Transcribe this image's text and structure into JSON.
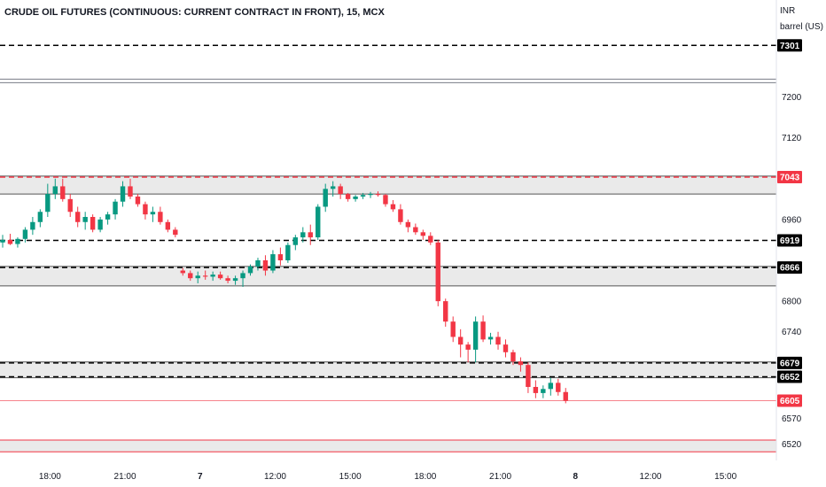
{
  "chart_data": {
    "type": "candlestick",
    "title": "CRUDE OIL FUTURES (CONTINUOUS: CURRENT CONTRACT IN FRONT), 15, MCX",
    "currency": "INR",
    "unit": "barrel (US)",
    "ylim": [
      6488,
      7390
    ],
    "y_ticks": [
      7200,
      7120,
      6960,
      6800,
      6740,
      6570,
      6520
    ],
    "x_ticks": [
      {
        "index": 6.3,
        "label": "18:00",
        "bold": false
      },
      {
        "index": 16.3,
        "label": "21:00",
        "bold": false
      },
      {
        "index": 26.3,
        "label": "7",
        "bold": true
      },
      {
        "index": 36.3,
        "label": "12:00",
        "bold": false
      },
      {
        "index": 46.3,
        "label": "15:00",
        "bold": false
      },
      {
        "index": 56.3,
        "label": "18:00",
        "bold": false
      },
      {
        "index": 66.3,
        "label": "21:00",
        "bold": false
      },
      {
        "index": 76.3,
        "label": "8",
        "bold": true
      },
      {
        "index": 86.3,
        "label": "12:00",
        "bold": false
      },
      {
        "index": 96.3,
        "label": "15:00",
        "bold": false
      }
    ],
    "levels": [
      {
        "value": 7301,
        "label": "7301",
        "style": "dashed",
        "color": "#000000"
      },
      {
        "value": 7043,
        "label": "7043",
        "style": "dashed",
        "color": "#f23645"
      },
      {
        "value": 6919,
        "label": "6919",
        "style": "dashed",
        "color": "#000000"
      },
      {
        "value": 6866,
        "label": "6866",
        "style": "dashed",
        "color": "#000000"
      },
      {
        "value": 6679,
        "label": "6679",
        "style": "dashed",
        "color": "#000000"
      },
      {
        "value": 6652,
        "label": "6652",
        "style": "dashed",
        "color": "#000000"
      }
    ],
    "last_price": {
      "value": 6605,
      "label": "6605",
      "color": "#f23645"
    },
    "zones": [
      {
        "from": 7010,
        "to": 7045,
        "fill": "#e3e3e3",
        "border": "#555555"
      },
      {
        "from": 6830,
        "to": 6868,
        "fill": "#e3e3e3",
        "border": "#555555"
      },
      {
        "from": 6650,
        "to": 6681,
        "fill": "#e3e3e3",
        "border": "#555555"
      },
      {
        "from": 6505,
        "to": 6528,
        "fill": "#e3e3e3",
        "border": "#f23645"
      }
    ],
    "double_line": [
      7235,
      7228
    ],
    "colors": {
      "up": "#089981",
      "down": "#f23645",
      "text": "#131722"
    },
    "candles": [
      [
        6915,
        6930,
        6905,
        6920
      ],
      [
        6920,
        6932,
        6910,
        6912
      ],
      [
        6912,
        6925,
        6905,
        6922
      ],
      [
        6922,
        6945,
        6915,
        6940
      ],
      [
        6940,
        6965,
        6930,
        6955
      ],
      [
        6955,
        6980,
        6945,
        6975
      ],
      [
        6975,
        7030,
        6965,
        7010
      ],
      [
        7010,
        7040,
        7000,
        7025
      ],
      [
        7025,
        7040,
        6995,
        7000
      ],
      [
        7000,
        7010,
        6965,
        6975
      ],
      [
        6975,
        6985,
        6945,
        6955
      ],
      [
        6955,
        6975,
        6940,
        6965
      ],
      [
        6965,
        6970,
        6935,
        6940
      ],
      [
        6940,
        6965,
        6935,
        6960
      ],
      [
        6960,
        6975,
        6950,
        6970
      ],
      [
        6970,
        7000,
        6960,
        6995
      ],
      [
        6995,
        7035,
        6985,
        7025
      ],
      [
        7025,
        7040,
        7000,
        7005
      ],
      [
        7005,
        7010,
        6985,
        6990
      ],
      [
        6990,
        6995,
        6960,
        6970
      ],
      [
        6970,
        6985,
        6955,
        6975
      ],
      [
        6975,
        6985,
        6950,
        6955
      ],
      [
        6955,
        6960,
        6935,
        6940
      ],
      [
        6940,
        6945,
        6925,
        6930
      ],
      [
        6860,
        6865,
        6850,
        6855
      ],
      [
        6855,
        6860,
        6840,
        6845
      ],
      [
        6845,
        6858,
        6835,
        6850
      ],
      [
        6850,
        6860,
        6842,
        6848
      ],
      [
        6848,
        6858,
        6840,
        6852
      ],
      [
        6852,
        6858,
        6842,
        6845
      ],
      [
        6845,
        6850,
        6835,
        6840
      ],
      [
        6840,
        6850,
        6832,
        6845
      ],
      [
        6845,
        6860,
        6828,
        6855
      ],
      [
        6855,
        6872,
        6850,
        6868
      ],
      [
        6868,
        6885,
        6860,
        6880
      ],
      [
        6880,
        6890,
        6850,
        6860
      ],
      [
        6860,
        6900,
        6855,
        6892
      ],
      [
        6892,
        6905,
        6870,
        6880
      ],
      [
        6880,
        6915,
        6875,
        6910
      ],
      [
        6910,
        6930,
        6900,
        6925
      ],
      [
        6925,
        6945,
        6915,
        6935
      ],
      [
        6935,
        6950,
        6910,
        6925
      ],
      [
        6925,
        6990,
        6920,
        6985
      ],
      [
        6985,
        7030,
        6975,
        7020
      ],
      [
        7020,
        7035,
        7005,
        7025
      ],
      [
        7025,
        7030,
        7000,
        7010
      ],
      [
        7010,
        7012,
        6995,
        7000
      ],
      [
        7000,
        7008,
        6995,
        7005
      ],
      [
        7005,
        7012,
        7000,
        7008
      ],
      [
        7008,
        7014,
        7002,
        7010
      ],
      [
        7010,
        7015,
        7005,
        7008
      ],
      [
        7008,
        7010,
        6985,
        6990
      ],
      [
        6990,
        6998,
        6975,
        6980
      ],
      [
        6980,
        6990,
        6950,
        6955
      ],
      [
        6955,
        6960,
        6935,
        6945
      ],
      [
        6945,
        6952,
        6930,
        6935
      ],
      [
        6935,
        6940,
        6920,
        6928
      ],
      [
        6928,
        6935,
        6910,
        6915
      ],
      [
        6915,
        6920,
        6790,
        6800
      ],
      [
        6800,
        6805,
        6750,
        6760
      ],
      [
        6760,
        6770,
        6720,
        6730
      ],
      [
        6730,
        6745,
        6690,
        6715
      ],
      [
        6715,
        6720,
        6680,
        6705
      ],
      [
        6705,
        6770,
        6680,
        6760
      ],
      [
        6760,
        6772,
        6720,
        6725
      ],
      [
        6725,
        6738,
        6715,
        6730
      ],
      [
        6730,
        6740,
        6705,
        6715
      ],
      [
        6715,
        6725,
        6690,
        6700
      ],
      [
        6700,
        6705,
        6675,
        6682
      ],
      [
        6682,
        6690,
        6662,
        6675
      ],
      [
        6675,
        6680,
        6620,
        6632
      ],
      [
        6632,
        6645,
        6610,
        6620
      ],
      [
        6620,
        6635,
        6610,
        6628
      ],
      [
        6628,
        6650,
        6615,
        6640
      ],
      [
        6640,
        6648,
        6615,
        6622
      ],
      [
        6622,
        6630,
        6600,
        6605
      ]
    ]
  }
}
